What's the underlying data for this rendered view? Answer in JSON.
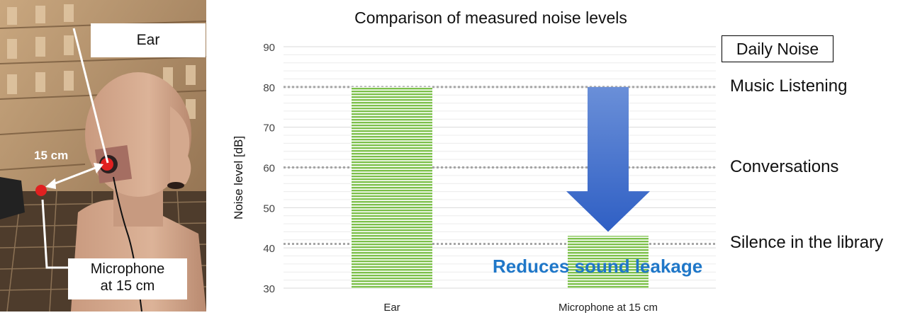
{
  "photo": {
    "ear_label": "Ear",
    "mic_label_line1": "Microphone",
    "mic_label_line2": "at 15 cm",
    "distance_label": "15 cm"
  },
  "chart_data": {
    "type": "bar",
    "title": "Comparison of measured noise levels",
    "ylabel": "Noise level [dB]",
    "xlabel": "",
    "ylim": [
      30,
      90
    ],
    "yticks": [
      30,
      40,
      50,
      60,
      70,
      80,
      90
    ],
    "categories": [
      "Ear",
      "Microphone at 15 cm"
    ],
    "values": [
      80,
      43
    ],
    "bar_color": "#7cc04a",
    "grid": true,
    "reference_lines": [
      {
        "value": 80,
        "label": "Music Listening"
      },
      {
        "value": 60,
        "label": "Conversations"
      },
      {
        "value": 41,
        "label": "Silence in the library"
      }
    ],
    "reference_header": "Daily Noise",
    "annotation": "Reduces sound leakage",
    "arrow": {
      "from": 80,
      "to": 44,
      "color": "#3d6fd0"
    }
  }
}
